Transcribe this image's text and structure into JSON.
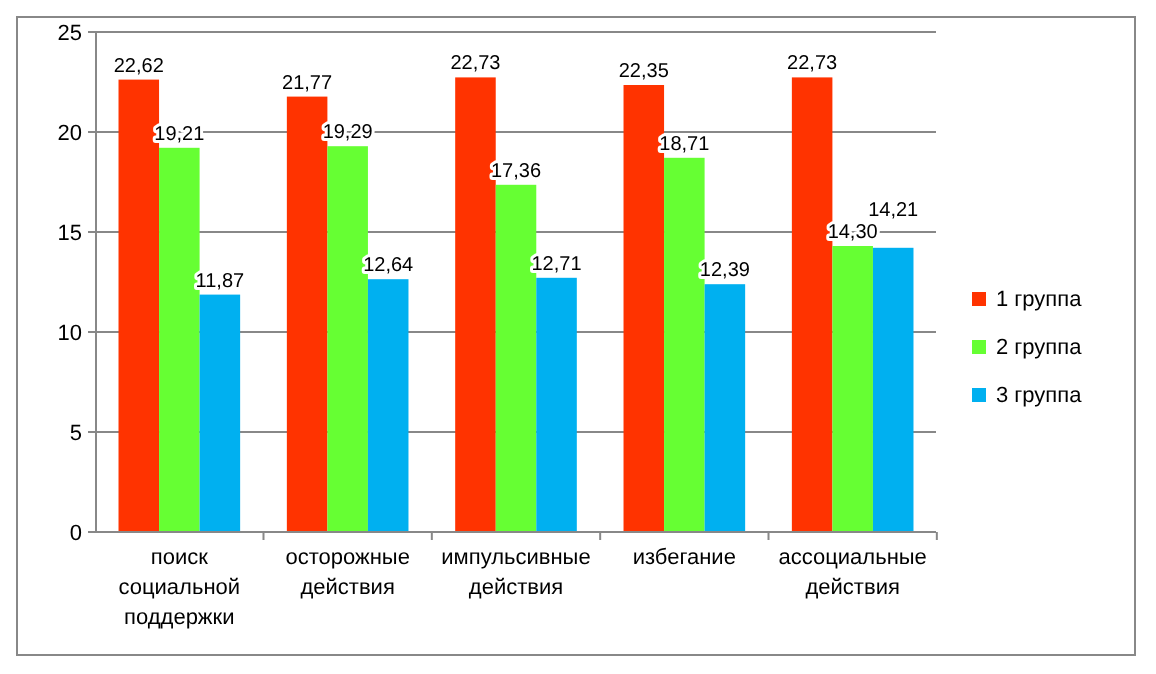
{
  "chart_data": {
    "type": "bar",
    "categories": [
      "поиск социальной поддержки",
      "осторожные действия",
      "импульсивные действия",
      "избегание",
      "ассоциальные действия"
    ],
    "series": [
      {
        "name": "1 группа",
        "color": "#ff3300",
        "values": [
          22.62,
          21.77,
          22.73,
          22.35,
          22.73
        ],
        "value_labels": [
          "22,62",
          "21,77",
          "22,73",
          "22,35",
          "22,73"
        ]
      },
      {
        "name": "2 группа",
        "color": "#66ff33",
        "values": [
          19.21,
          19.29,
          17.36,
          18.71,
          14.3
        ],
        "value_labels": [
          "19,21",
          "19,29",
          "17,36",
          "18,71",
          "14,30"
        ]
      },
      {
        "name": "3 группа",
        "color": "#00b0f0",
        "values": [
          11.87,
          12.64,
          12.71,
          12.39,
          14.21
        ],
        "value_labels": [
          "11,87",
          "12,64",
          "12,71",
          "12,39",
          "14,21"
        ]
      }
    ],
    "ylim": [
      0,
      25
    ],
    "yticks": [
      0,
      5,
      10,
      15,
      20,
      25
    ],
    "grid": "y",
    "legend": "right"
  }
}
